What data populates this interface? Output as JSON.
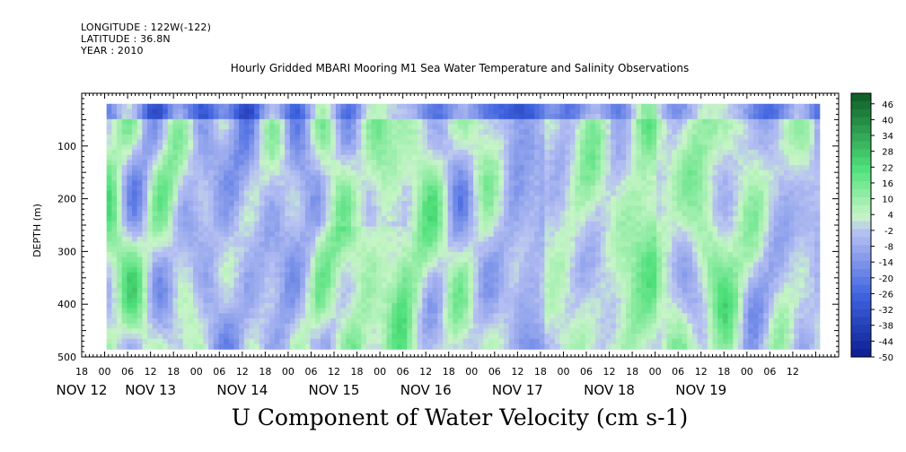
{
  "header": {
    "longitude": "LONGITUDE : 122W(-122)",
    "latitude": "LATITUDE : 36.8N",
    "year": "YEAR : 2010"
  },
  "chart_data": {
    "type": "heatmap",
    "title": "Hourly Gridded MBARI Mooring M1 Sea Water Temperature and Salinity Observations",
    "variable_title": "U Component of Water Velocity (cm s-1)",
    "ylabel": "DEPTH (m)",
    "ylim": [
      500,
      0
    ],
    "y_ticks": [
      100,
      200,
      300,
      400,
      500
    ],
    "time_range_hours": [
      0,
      198
    ],
    "data_time_range_hours": [
      6.5,
      193
    ],
    "data_depth_range": [
      20,
      485
    ],
    "x_hour_ticks": [
      "18",
      "00",
      "06",
      "12",
      "18",
      "00",
      "06",
      "12",
      "18",
      "00",
      "06",
      "12",
      "18",
      "00",
      "06",
      "12",
      "18",
      "00",
      "06",
      "12",
      "18",
      "00",
      "06",
      "12",
      "18",
      "00",
      "06",
      "12",
      "18",
      "00",
      "06",
      "12"
    ],
    "x_day_labels": [
      "NOV 12",
      "NOV 13",
      "NOV 14",
      "NOV 15",
      "NOV 16",
      "NOV 17",
      "NOV 18",
      "NOV 19"
    ],
    "colorbar": {
      "levels": [
        -50,
        -44,
        -38,
        -32,
        -26,
        -20,
        -14,
        -8,
        -2,
        4,
        10,
        16,
        22,
        28,
        34,
        40,
        46
      ],
      "min": -50,
      "max": 50,
      "step": 3
    },
    "colors": {
      "strong_negative": "#0a1a8c",
      "negative": "#3f63e0",
      "weak_negative": "#b8c2f2",
      "weak_positive": "#c6f5c6",
      "positive": "#4ee07a",
      "strong_positive": "#0e5a26"
    }
  }
}
